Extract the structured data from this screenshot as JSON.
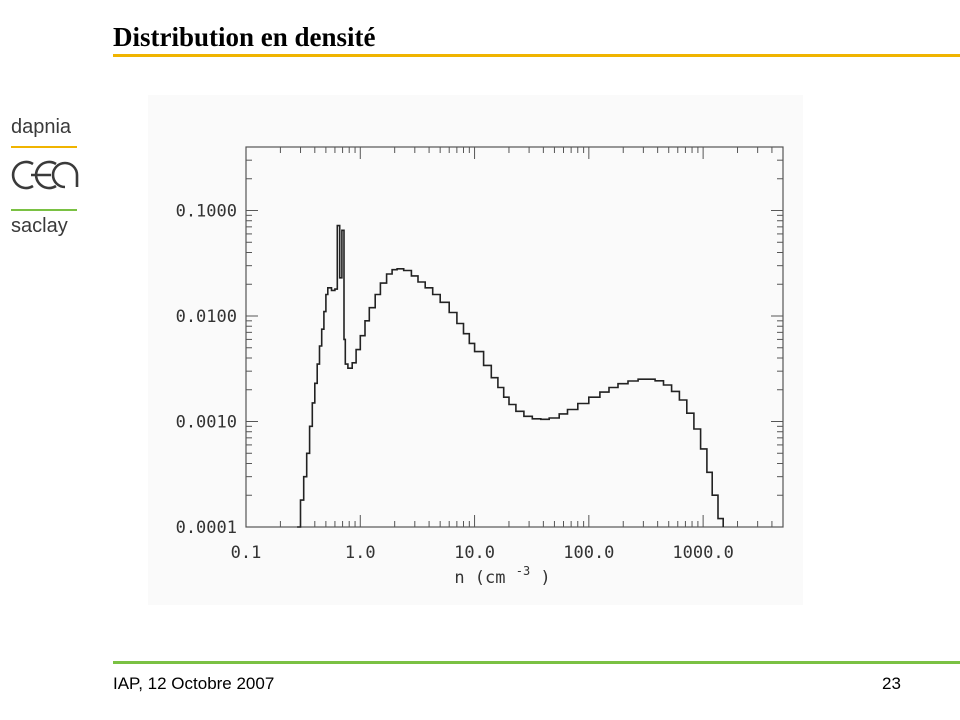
{
  "slide": {
    "title": "Distribution en densité",
    "footer": "IAP, 12 Octobre 2007",
    "page_number": "23"
  },
  "logo": {
    "top_text": "dapnia",
    "mark": "cea",
    "bottom_text": "saclay",
    "colors": {
      "yellow": "#f0b400",
      "green": "#7ac143",
      "text": "#3a3a3a"
    }
  },
  "chart_data": {
    "type": "line",
    "style": "histogram-step",
    "title": "",
    "xlabel": "n (cm",
    "xlabel_sup": "-3",
    "xlabel_close": ")",
    "ylabel": "",
    "x_scale": "log",
    "y_scale": "log",
    "xlim": [
      0.1,
      5000
    ],
    "ylim": [
      0.0001,
      0.4
    ],
    "x_ticks": [
      {
        "value": 0.1,
        "label": "0.1"
      },
      {
        "value": 1,
        "label": "1.0"
      },
      {
        "value": 10,
        "label": "10.0"
      },
      {
        "value": 100,
        "label": "100.0"
      },
      {
        "value": 1000,
        "label": "1000.0"
      }
    ],
    "y_ticks": [
      {
        "value": 0.0001,
        "label": "0.0001"
      },
      {
        "value": 0.001,
        "label": "0.0010"
      },
      {
        "value": 0.01,
        "label": "0.0100"
      },
      {
        "value": 0.1,
        "label": "0.1000"
      }
    ],
    "grid": false,
    "legend": "none",
    "series": [
      {
        "color": "#222222",
        "points": [
          [
            0.28,
            0.0001
          ],
          [
            0.3,
            0.00018
          ],
          [
            0.32,
            0.0003
          ],
          [
            0.34,
            0.0005
          ],
          [
            0.36,
            0.0009
          ],
          [
            0.38,
            0.0015
          ],
          [
            0.4,
            0.0023
          ],
          [
            0.42,
            0.0035
          ],
          [
            0.44,
            0.0052
          ],
          [
            0.46,
            0.0075
          ],
          [
            0.48,
            0.011
          ],
          [
            0.5,
            0.016
          ],
          [
            0.52,
            0.0185
          ],
          [
            0.56,
            0.0175
          ],
          [
            0.6,
            0.018
          ],
          [
            0.63,
            0.072
          ],
          [
            0.66,
            0.023
          ],
          [
            0.69,
            0.065
          ],
          [
            0.72,
            0.006
          ],
          [
            0.74,
            0.0035
          ],
          [
            0.78,
            0.0032
          ],
          [
            0.85,
            0.0036
          ],
          [
            0.92,
            0.0048
          ],
          [
            1.0,
            0.0065
          ],
          [
            1.1,
            0.009
          ],
          [
            1.2,
            0.012
          ],
          [
            1.35,
            0.016
          ],
          [
            1.5,
            0.0205
          ],
          [
            1.7,
            0.025
          ],
          [
            1.9,
            0.0275
          ],
          [
            2.1,
            0.028
          ],
          [
            2.4,
            0.027
          ],
          [
            2.8,
            0.024
          ],
          [
            3.2,
            0.021
          ],
          [
            3.7,
            0.0185
          ],
          [
            4.3,
            0.016
          ],
          [
            5.0,
            0.0135
          ],
          [
            6.0,
            0.0108
          ],
          [
            7.0,
            0.0085
          ],
          [
            8.0,
            0.0068
          ],
          [
            9.0,
            0.0055
          ],
          [
            10,
            0.0046
          ],
          [
            12,
            0.0034
          ],
          [
            14,
            0.0026
          ],
          [
            16,
            0.0021
          ],
          [
            18,
            0.0017
          ],
          [
            20,
            0.00145
          ],
          [
            23,
            0.00125
          ],
          [
            27,
            0.00112
          ],
          [
            32,
            0.00106
          ],
          [
            38,
            0.00105
          ],
          [
            45,
            0.00108
          ],
          [
            55,
            0.00118
          ],
          [
            65,
            0.0013
          ],
          [
            80,
            0.00148
          ],
          [
            100,
            0.0017
          ],
          [
            125,
            0.0019
          ],
          [
            150,
            0.0021
          ],
          [
            180,
            0.00228
          ],
          [
            220,
            0.00242
          ],
          [
            270,
            0.00252
          ],
          [
            320,
            0.00252
          ],
          [
            380,
            0.00243
          ],
          [
            450,
            0.00222
          ],
          [
            530,
            0.00193
          ],
          [
            620,
            0.0016
          ],
          [
            720,
            0.0012
          ],
          [
            830,
            0.00085
          ],
          [
            950,
            0.00055
          ],
          [
            1080,
            0.00033
          ],
          [
            1200,
            0.0002
          ],
          [
            1350,
            0.00012
          ],
          [
            1500,
            0.0001
          ]
        ]
      }
    ]
  }
}
